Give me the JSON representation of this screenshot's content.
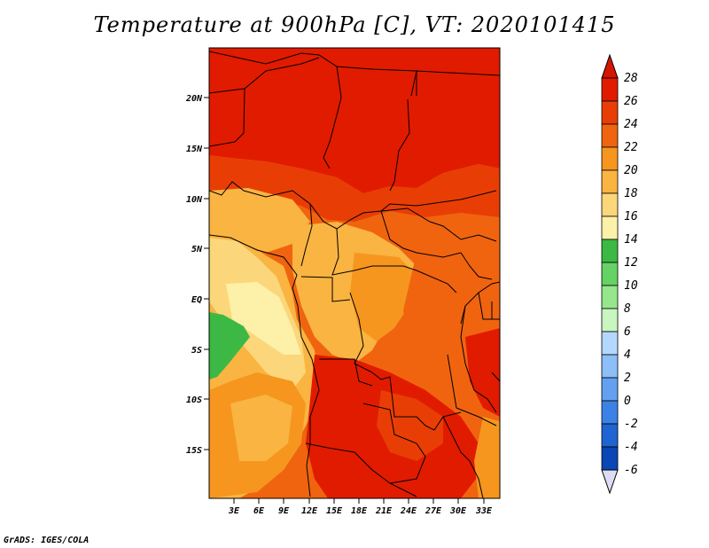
{
  "title": "Temperature at 900hPa [C], VT: 2020101415",
  "credit": "GrADS: IGES/COLA",
  "map": {
    "lon_range": [
      0,
      36
    ],
    "lat_range": [
      -20,
      25
    ],
    "lat_ticks": [
      "20N",
      "15N",
      "10N",
      "5N",
      "EQ",
      "5S",
      "10S",
      "15S"
    ],
    "lon_ticks": [
      "3E",
      "6E",
      "9E",
      "12E",
      "15E",
      "18E",
      "21E",
      "24E",
      "27E",
      "30E",
      "33E"
    ]
  },
  "colorbar": {
    "labels": [
      "28",
      "26",
      "24",
      "22",
      "20",
      "18",
      "16",
      "14",
      "12",
      "10",
      "8",
      "6",
      "4",
      "2",
      "0",
      "-2",
      "-4",
      "-6"
    ],
    "colors": [
      "#e11b00",
      "#e83e05",
      "#f0640f",
      "#f6961e",
      "#f9b442",
      "#fcd67a",
      "#fdf0a8",
      "#3cb944",
      "#64d264",
      "#96e68c",
      "#c8f5c0",
      "#b4d7ff",
      "#8cbef8",
      "#64a0ef",
      "#3c82e6",
      "#1e64d2",
      "#0a46b4",
      "#03308c",
      "#0a0a6e"
    ],
    "top_arrow_color": "#d41500",
    "bottom_arrow_color": "#dcdcf5"
  },
  "legend_colors": {
    "ocean_cool": "#fdf0a8",
    "ocean_green": "#3cb944",
    "north_hot": "#e11b00"
  }
}
